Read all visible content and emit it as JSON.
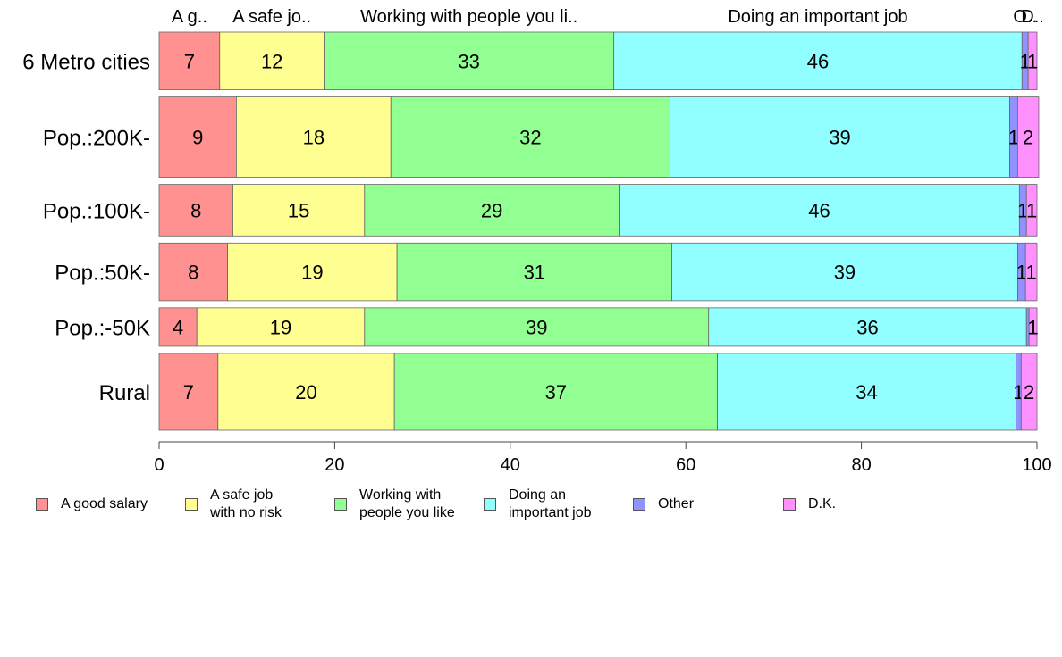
{
  "chart_data": {
    "type": "bar",
    "orientation": "horizontal",
    "stacked": true,
    "categories": [
      "6 Metro cities",
      "Pop.:200K-",
      "Pop.:100K-",
      "Pop.:50K-",
      "Pop.:-50K",
      "Rural"
    ],
    "series": [
      {
        "name": "A good salary",
        "top_label": "A g..",
        "legend_label": "A good salary",
        "color": "#FF9191",
        "values": [
          6.9,
          8.8,
          8.4,
          7.8,
          4.3,
          6.7
        ],
        "labels": [
          "7",
          "9",
          "8",
          "8",
          "4",
          "7"
        ]
      },
      {
        "name": "A safe job with no risk",
        "top_label": "A safe jo..",
        "legend_label": "A safe job\nwith no risk",
        "color": "#FFFF91",
        "values": [
          11.9,
          17.6,
          15.0,
          19.3,
          19.1,
          20.1
        ],
        "labels": [
          "12",
          "18",
          "15",
          "19",
          "19",
          "20"
        ]
      },
      {
        "name": "Working with people you like",
        "top_label": "Working with people you li..",
        "legend_label": "Working with\npeople you like",
        "color": "#91FF91",
        "values": [
          33.0,
          31.8,
          29.0,
          31.3,
          39.2,
          36.8
        ],
        "labels": [
          "33",
          "32",
          "29",
          "31",
          "39",
          "37"
        ]
      },
      {
        "name": "Doing an important job",
        "top_label": "Doing an important job",
        "legend_label": "Doing an\nimportant job",
        "color": "#91FFFF",
        "values": [
          46.5,
          38.7,
          45.6,
          39.4,
          36.2,
          34.0
        ],
        "labels": [
          "46",
          "39",
          "46",
          "39",
          "36",
          "34"
        ]
      },
      {
        "name": "Other",
        "top_label": "O..",
        "legend_label": "Other",
        "color": "#9191FF",
        "values": [
          0.7,
          0.9,
          0.8,
          0.9,
          0.3,
          0.6
        ],
        "labels": [
          "1",
          "1",
          "1",
          "1",
          "",
          "1"
        ]
      },
      {
        "name": "D.K.",
        "top_label": "D..",
        "legend_label": "D.K.",
        "color": "#FF91FF",
        "values": [
          1.0,
          2.4,
          1.2,
          1.3,
          0.9,
          1.8
        ],
        "labels": [
          "1",
          "2",
          "1",
          "1",
          "1",
          "2"
        ]
      }
    ],
    "bar_widths": [
      0.66,
      0.92,
      0.59,
      0.66,
      0.44,
      0.88
    ],
    "xlim": [
      0,
      100
    ],
    "xticks": [
      0,
      20,
      40,
      60,
      80,
      100
    ],
    "xlabel": "",
    "ylabel": "",
    "title": "",
    "legend_position": "bottom",
    "grid": false
  }
}
